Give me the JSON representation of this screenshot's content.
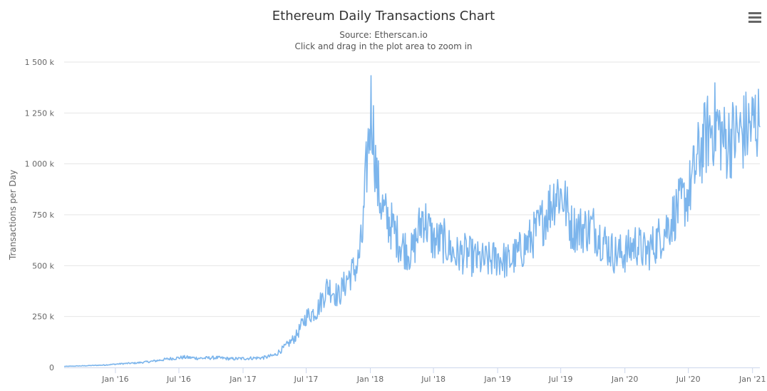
{
  "chart_data": {
    "type": "line",
    "title": "Ethereum Daily Transactions Chart",
    "subtitle": "Source: Etherscan.io",
    "subtitle2": "Click and drag in the plot area to zoom in",
    "xlabel": "",
    "ylabel": "Transactions per Day",
    "ylim": [
      0,
      1500000
    ],
    "xlim": [
      "2015-08-07",
      "2021-01-22"
    ],
    "grid": true,
    "legend": "none",
    "y_ticks": [
      {
        "value": 0,
        "label": "0"
      },
      {
        "value": 250000,
        "label": "250 k"
      },
      {
        "value": 500000,
        "label": "500 k"
      },
      {
        "value": 750000,
        "label": "750 k"
      },
      {
        "value": 1000000,
        "label": "1 000 k"
      },
      {
        "value": 1250000,
        "label": "1 250 k"
      },
      {
        "value": 1500000,
        "label": "1 500 k"
      }
    ],
    "x_ticks": [
      {
        "date": "2016-01-01",
        "label": "Jan '16"
      },
      {
        "date": "2016-07-01",
        "label": "Jul '16"
      },
      {
        "date": "2017-01-01",
        "label": "Jan '17"
      },
      {
        "date": "2017-07-01",
        "label": "Jul '17"
      },
      {
        "date": "2018-01-01",
        "label": "Jan '18"
      },
      {
        "date": "2018-07-01",
        "label": "Jul '18"
      },
      {
        "date": "2019-01-01",
        "label": "Jan '19"
      },
      {
        "date": "2019-07-01",
        "label": "Jul '19"
      },
      {
        "date": "2020-01-01",
        "label": "Jan '20"
      },
      {
        "date": "2020-07-01",
        "label": "Jul '20"
      },
      {
        "date": "2021-01-01",
        "label": "Jan '21"
      }
    ],
    "series": [
      {
        "color": "#7cb5ec",
        "x": [
          "2015-08-07",
          "2015-10-01",
          "2015-12-01",
          "2016-01-15",
          "2016-03-01",
          "2016-04-15",
          "2016-06-01",
          "2016-07-15",
          "2016-09-01",
          "2016-10-15",
          "2016-12-01",
          "2017-01-15",
          "2017-03-01",
          "2017-04-01",
          "2017-05-01",
          "2017-06-01",
          "2017-07-01",
          "2017-08-01",
          "2017-09-01",
          "2017-10-01",
          "2017-11-01",
          "2017-11-25",
          "2017-12-10",
          "2017-12-20",
          "2018-01-04",
          "2018-01-20",
          "2018-02-10",
          "2018-03-01",
          "2018-04-01",
          "2018-05-01",
          "2018-06-01",
          "2018-07-01",
          "2018-08-01",
          "2018-09-01",
          "2018-10-01",
          "2018-11-01",
          "2018-12-01",
          "2019-01-01",
          "2019-02-01",
          "2019-03-01",
          "2019-04-01",
          "2019-05-01",
          "2019-06-01",
          "2019-06-20",
          "2019-07-10",
          "2019-08-01",
          "2019-09-01",
          "2019-10-01",
          "2019-11-01",
          "2019-12-01",
          "2020-01-01",
          "2020-02-01",
          "2020-03-01",
          "2020-04-01",
          "2020-05-01",
          "2020-06-01",
          "2020-07-01",
          "2020-08-01",
          "2020-09-01",
          "2020-09-20",
          "2020-10-15",
          "2020-11-01",
          "2020-12-01",
          "2021-01-01",
          "2021-01-10",
          "2021-01-22"
        ],
        "values": [
          5000,
          8000,
          12000,
          18000,
          22000,
          30000,
          42000,
          50000,
          45000,
          48000,
          42000,
          45000,
          48000,
          60000,
          100000,
          150000,
          250000,
          280000,
          400000,
          350000,
          450000,
          500000,
          650000,
          950000,
          1300000,
          900000,
          750000,
          700000,
          600000,
          560000,
          750000,
          620000,
          620000,
          550000,
          560000,
          530000,
          520000,
          540000,
          520000,
          560000,
          620000,
          690000,
          800000,
          870000,
          830000,
          690000,
          680000,
          690000,
          620000,
          560000,
          560000,
          610000,
          560000,
          620000,
          690000,
          780000,
          850000,
          1050000,
          1180000,
          1200000,
          1100000,
          1130000,
          1150000,
          1190000,
          1220000,
          1180000
        ]
      }
    ]
  }
}
